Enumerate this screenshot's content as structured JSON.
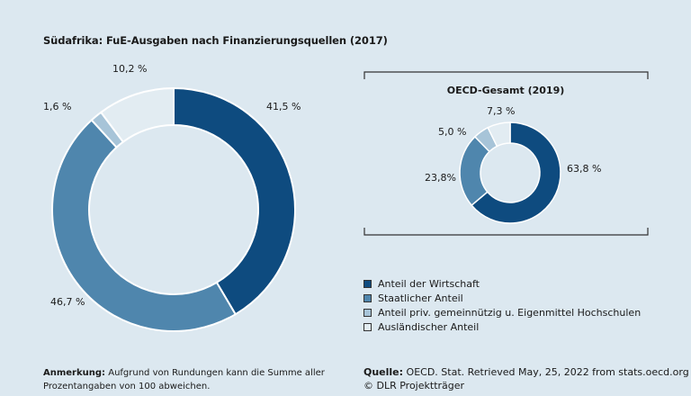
{
  "chart_data": [
    {
      "type": "pie",
      "title": "Südafrika: FuE-Ausgaben nach Finanzierungsquellen (2017)",
      "categories": [
        "Anteil der Wirtschaft",
        "Staatlicher Anteil",
        "Anteil priv. gemeinnützig u. Eigenmittel Hochschulen",
        "Ausländischer Anteil"
      ],
      "values": [
        41.5,
        46.7,
        1.6,
        10.2
      ],
      "labels": [
        "41,5 %",
        "46,7 %",
        "1,6 %",
        "10,2 %"
      ],
      "colors": [
        "#0e4b7f",
        "#4f86ad",
        "#a7c4d8",
        "#e2ecf2"
      ]
    },
    {
      "type": "pie",
      "title": "OECD-Gesamt (2019)",
      "categories": [
        "Anteil der Wirtschaft",
        "Staatlicher Anteil",
        "Anteil priv. gemeinnützig u. Eigenmittel Hochschulen",
        "Ausländischer Anteil"
      ],
      "values": [
        63.8,
        23.8,
        5.0,
        7.3
      ],
      "labels": [
        "63,8 %",
        "23,8%",
        "5,0 %",
        "7,3 %"
      ],
      "colors": [
        "#0e4b7f",
        "#4f86ad",
        "#a7c4d8",
        "#e2ecf2"
      ]
    }
  ],
  "legend": [
    {
      "label": "Anteil der Wirtschaft",
      "color": "#0e4b7f"
    },
    {
      "label": "Staatlicher Anteil",
      "color": "#4f86ad"
    },
    {
      "label": "Anteil priv. gemeinnützig u. Eigenmittel Hochschulen",
      "color": "#a7c4d8"
    },
    {
      "label": "Ausländischer Anteil",
      "color": "#e2ecf2"
    }
  ],
  "note": {
    "heading": "Anmerkung:",
    "text": " Aufgrund von Rundungen kann die Summe aller Prozentangaben von 100 abweichen."
  },
  "source": {
    "heading": "Quelle:",
    "text": " OECD. Stat. Retrieved May, 25, 2022 from stats.oecd.org",
    "credit": "© DLR Projektträger"
  }
}
